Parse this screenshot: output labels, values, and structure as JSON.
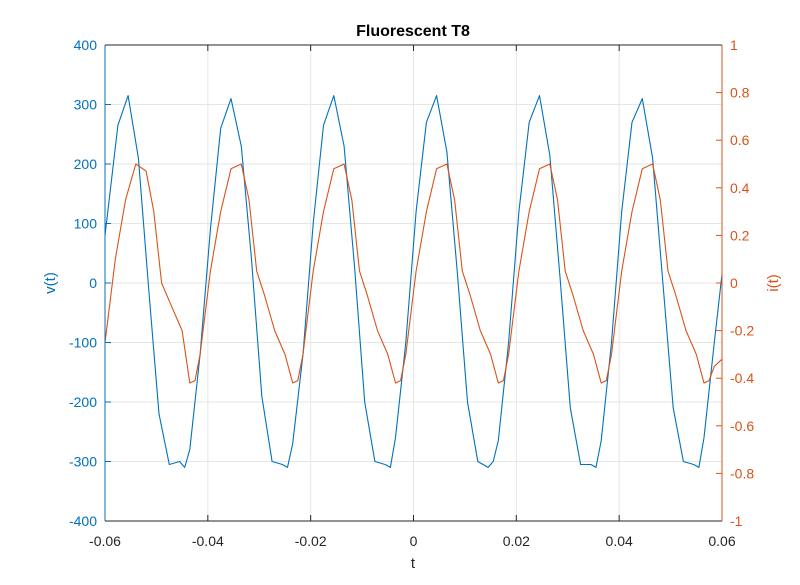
{
  "chart_data": {
    "type": "line",
    "title": "Fluorescent T8",
    "xlabel": "t",
    "ylabel_left": "v(t)",
    "ylabel_right": "i(t)",
    "xlim": [
      -0.06,
      0.06
    ],
    "ylim_left": [
      -400,
      400
    ],
    "ylim_right": [
      -1,
      1
    ],
    "xticks": [
      "-0.06",
      "-0.04",
      "-0.02",
      "0",
      "0.02",
      "0.04",
      "0.06"
    ],
    "xtick_values": [
      -0.06,
      -0.04,
      -0.02,
      0,
      0.02,
      0.04,
      0.06
    ],
    "yticks_left": [
      "400",
      "300",
      "200",
      "100",
      "0",
      "-100",
      "-200",
      "-300",
      "-400"
    ],
    "ytick_values_left": [
      400,
      300,
      200,
      100,
      0,
      -100,
      -200,
      -300,
      -400
    ],
    "yticks_right": [
      "1",
      "0.8",
      "0.6",
      "0.4",
      "0.2",
      "0",
      "-0.2",
      "-0.4",
      "-0.6",
      "-0.8",
      "-1"
    ],
    "ytick_values_right": [
      1,
      0.8,
      0.6,
      0.4,
      0.2,
      0,
      -0.2,
      -0.4,
      -0.6,
      -0.8,
      -1
    ],
    "grid": true,
    "colors": {
      "voltage": "#0072BD",
      "current": "#D95319",
      "grid": "#e6e6e6",
      "axis": "#262626"
    },
    "series": [
      {
        "axis": "left",
        "x": [
          -0.06,
          -0.0575,
          -0.0555,
          -0.0535,
          -0.0515,
          -0.0495,
          -0.0475,
          -0.0455,
          -0.0445,
          -0.0435,
          -0.0415,
          -0.0395,
          -0.0375,
          -0.0355,
          -0.0335,
          -0.0315,
          -0.0295,
          -0.0275,
          -0.0255,
          -0.0245,
          -0.0235,
          -0.0215,
          -0.0195,
          -0.0175,
          -0.0155,
          -0.0135,
          -0.0115,
          -0.0095,
          -0.0075,
          -0.0055,
          -0.0045,
          -0.0035,
          -0.0015,
          0.0005,
          0.0025,
          0.0045,
          0.0065,
          0.0085,
          0.0105,
          0.0125,
          0.0145,
          0.0155,
          0.0165,
          0.0185,
          0.0205,
          0.0225,
          0.0245,
          0.0265,
          0.0285,
          0.0305,
          0.0325,
          0.0345,
          0.0355,
          0.0365,
          0.0385,
          0.0405,
          0.0425,
          0.0445,
          0.0465,
          0.0485,
          0.0505,
          0.0525,
          0.0545,
          0.0555,
          0.0565,
          0.0585,
          0.06
        ],
        "values": [
          80,
          265,
          315,
          210,
          -10,
          -220,
          -305,
          -300,
          -310,
          -280,
          -120,
          90,
          260,
          310,
          230,
          40,
          -190,
          -300,
          -305,
          -310,
          -270,
          -120,
          100,
          265,
          315,
          230,
          30,
          -200,
          -300,
          -305,
          -310,
          -260,
          -100,
          120,
          270,
          315,
          220,
          20,
          -200,
          -300,
          -310,
          -300,
          -265,
          -100,
          120,
          270,
          315,
          215,
          10,
          -210,
          -305,
          -305,
          -310,
          -265,
          -100,
          120,
          270,
          310,
          210,
          0,
          -210,
          -300,
          -305,
          -310,
          -260,
          -100,
          15
        ]
      },
      {
        "axis": "right",
        "x": [
          -0.06,
          -0.058,
          -0.056,
          -0.054,
          -0.052,
          -0.0505,
          -0.049,
          -0.047,
          -0.045,
          -0.0435,
          -0.0425,
          -0.0415,
          -0.0395,
          -0.0375,
          -0.0355,
          -0.0335,
          -0.032,
          -0.0305,
          -0.029,
          -0.027,
          -0.025,
          -0.0235,
          -0.0225,
          -0.0215,
          -0.0195,
          -0.0175,
          -0.0155,
          -0.0135,
          -0.012,
          -0.0105,
          -0.009,
          -0.007,
          -0.005,
          -0.0035,
          -0.0025,
          -0.0015,
          0.0005,
          0.0025,
          0.0045,
          0.0065,
          0.008,
          0.0095,
          0.011,
          0.013,
          0.015,
          0.0165,
          0.0175,
          0.0185,
          0.0205,
          0.0225,
          0.0245,
          0.0265,
          0.028,
          0.0295,
          0.031,
          0.033,
          0.035,
          0.0365,
          0.0375,
          0.0385,
          0.0405,
          0.0425,
          0.0445,
          0.0465,
          0.048,
          0.0495,
          0.051,
          0.053,
          0.055,
          0.0565,
          0.0575,
          0.0585,
          0.06
        ],
        "values": [
          -0.25,
          0.1,
          0.35,
          0.5,
          0.47,
          0.3,
          0.0,
          -0.1,
          -0.2,
          -0.42,
          -0.41,
          -0.3,
          0.05,
          0.3,
          0.48,
          0.5,
          0.35,
          0.05,
          -0.05,
          -0.2,
          -0.3,
          -0.42,
          -0.41,
          -0.3,
          0.05,
          0.3,
          0.48,
          0.5,
          0.35,
          0.05,
          -0.05,
          -0.2,
          -0.3,
          -0.42,
          -0.41,
          -0.3,
          0.05,
          0.3,
          0.48,
          0.5,
          0.35,
          0.05,
          -0.05,
          -0.2,
          -0.3,
          -0.42,
          -0.41,
          -0.3,
          0.05,
          0.3,
          0.48,
          0.5,
          0.35,
          0.05,
          -0.05,
          -0.2,
          -0.3,
          -0.42,
          -0.41,
          -0.3,
          0.05,
          0.3,
          0.48,
          0.5,
          0.35,
          0.05,
          -0.05,
          -0.2,
          -0.3,
          -0.42,
          -0.41,
          -0.35,
          -0.32
        ]
      }
    ]
  }
}
